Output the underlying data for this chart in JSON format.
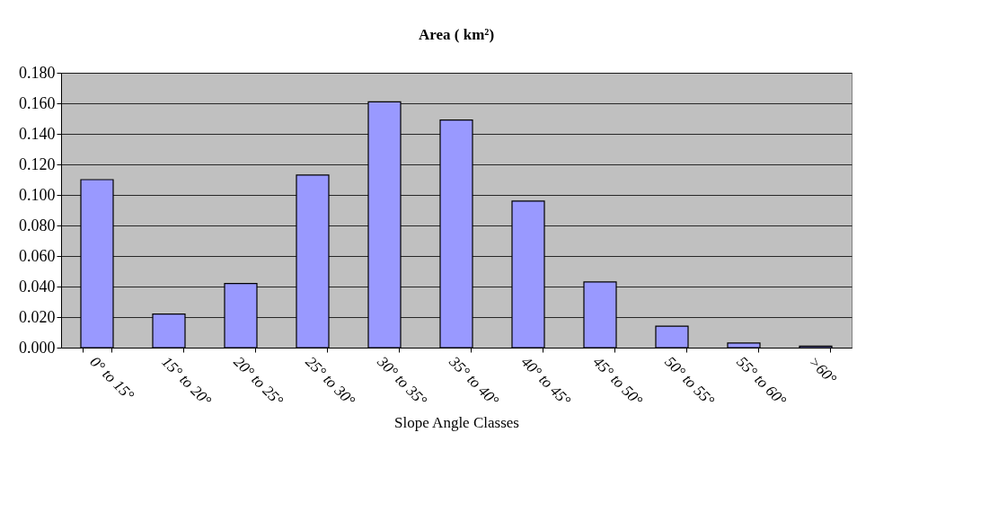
{
  "chart_data": {
    "type": "bar",
    "title": "Area ( km²)",
    "xlabel": "Slope Angle Classes",
    "categories": [
      "0° to 15°",
      "15° to 20°",
      "20° to 25°",
      "25° to 30°",
      "30° to 35°",
      "35° to 40°",
      "40° to 45°",
      "45° to 50°",
      "50° to 55°",
      "55° to 60°",
      ">60°"
    ],
    "values": [
      0.11,
      0.022,
      0.042,
      0.113,
      0.161,
      0.149,
      0.096,
      0.043,
      0.014,
      0.003,
      0.001
    ],
    "color": "#9999ff",
    "ylim": [
      0,
      0.18
    ],
    "yticks": [
      {
        "value": 0,
        "label": "0.000"
      },
      {
        "value": 0.02,
        "label": "0.020"
      },
      {
        "value": 0.04,
        "label": "0.040"
      },
      {
        "value": 0.06,
        "label": "0.060"
      },
      {
        "value": 0.08,
        "label": "0.080"
      },
      {
        "value": 0.1,
        "label": "0.100"
      },
      {
        "value": 0.12,
        "label": "0.120"
      },
      {
        "value": 0.14,
        "label": "0.140"
      },
      {
        "value": 0.16,
        "label": "0.160"
      },
      {
        "value": 0.18,
        "label": "0.180"
      }
    ],
    "grid": "y"
  }
}
